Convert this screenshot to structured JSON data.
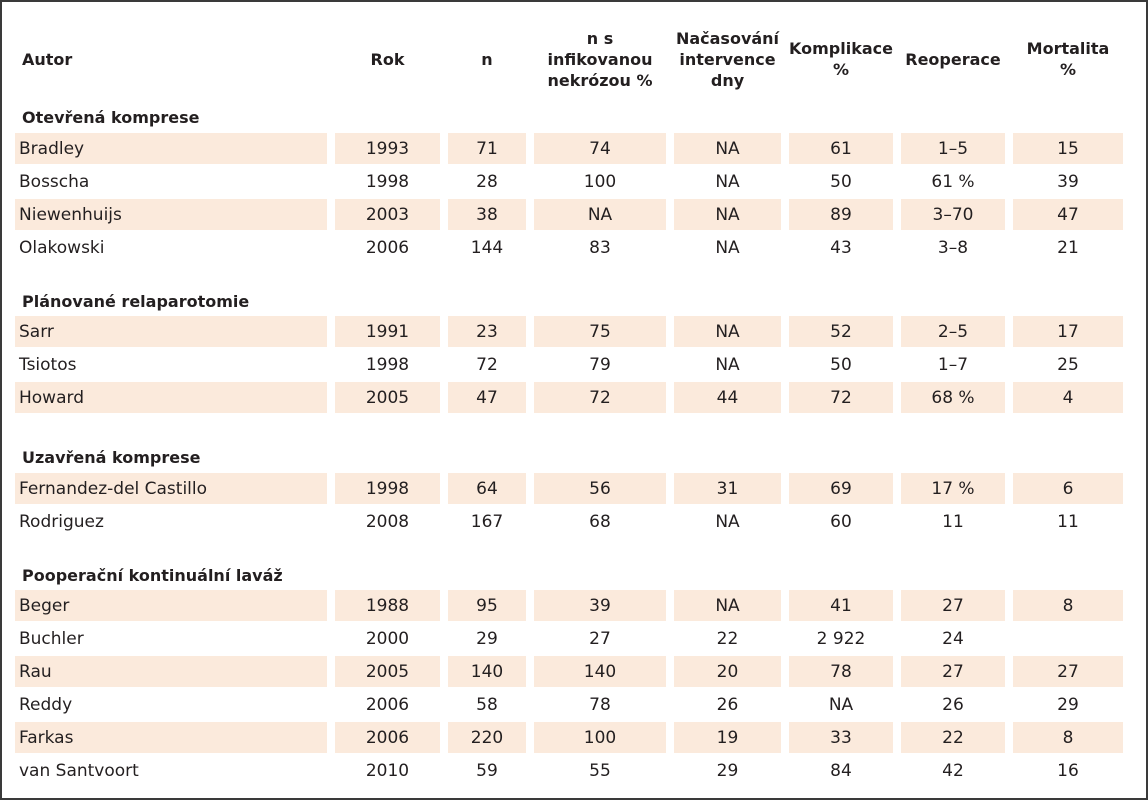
{
  "colors": {
    "stripe": "#fbeadc",
    "border": "#3a3a3a",
    "text": "#231f20"
  },
  "table": {
    "headers": [
      [
        "Autor"
      ],
      [
        "Rok"
      ],
      [
        "n"
      ],
      [
        "n s infikovanou",
        "nekrózou %"
      ],
      [
        "Načasování",
        "intervence",
        "dny"
      ],
      [
        "Komplikace",
        "%"
      ],
      [
        "Reoperace"
      ],
      [
        "Mortalita",
        "%"
      ]
    ],
    "sections": [
      {
        "title": "Otevřená komprese",
        "rows": [
          [
            "Bradley",
            "1993",
            "71",
            "74",
            "NA",
            "61",
            "1–5",
            "15"
          ],
          [
            "Bosscha",
            "1998",
            "28",
            "100",
            "NA",
            "50",
            "61 %",
            "39"
          ],
          [
            "Niewenhuijs",
            "2003",
            "38",
            "NA",
            "NA",
            "89",
            "3–70",
            "47"
          ],
          [
            "Olakowski",
            "2006",
            "144",
            "83",
            "NA",
            "43",
            "3–8",
            "21"
          ]
        ]
      },
      {
        "title": "Plánované relaparotomie",
        "rows": [
          [
            "Sarr",
            "1991",
            "23",
            "75",
            "NA",
            "52",
            "2–5",
            "17"
          ],
          [
            "Tsiotos",
            "1998",
            "72",
            "79",
            "NA",
            "50",
            "1–7",
            "25"
          ],
          [
            "Howard",
            "2005",
            "47",
            "72",
            "44",
            "72",
            "68 %",
            "4"
          ]
        ]
      },
      {
        "title": "Uzavřená komprese",
        "rows": [
          [
            "Fernandez-del Castillo",
            "1998",
            "64",
            "56",
            "31",
            "69",
            "17 %",
            "6"
          ],
          [
            "Rodriguez",
            "2008",
            "167",
            "68",
            "NA",
            "60",
            "11",
            "11"
          ]
        ]
      },
      {
        "title": "Pooperační kontinuální laváž",
        "rows": [
          [
            "Beger",
            "1988",
            "95",
            "39",
            "NA",
            "41",
            "27",
            "8"
          ],
          [
            "Buchler",
            "2000",
            "29",
            "27",
            "22",
            "2 922",
            "24",
            ""
          ],
          [
            "Rau",
            "2005",
            "140",
            "140",
            "20",
            "78",
            "27",
            "27"
          ],
          [
            "Reddy",
            "2006",
            "58",
            "78",
            "26",
            "NA",
            "26",
            "29"
          ],
          [
            "Farkas",
            "2006",
            "220",
            "100",
            "19",
            "33",
            "22",
            "8"
          ],
          [
            "van Santvoort",
            "2010",
            "59",
            "55",
            "29",
            "84",
            "42",
            "16"
          ]
        ]
      }
    ]
  }
}
